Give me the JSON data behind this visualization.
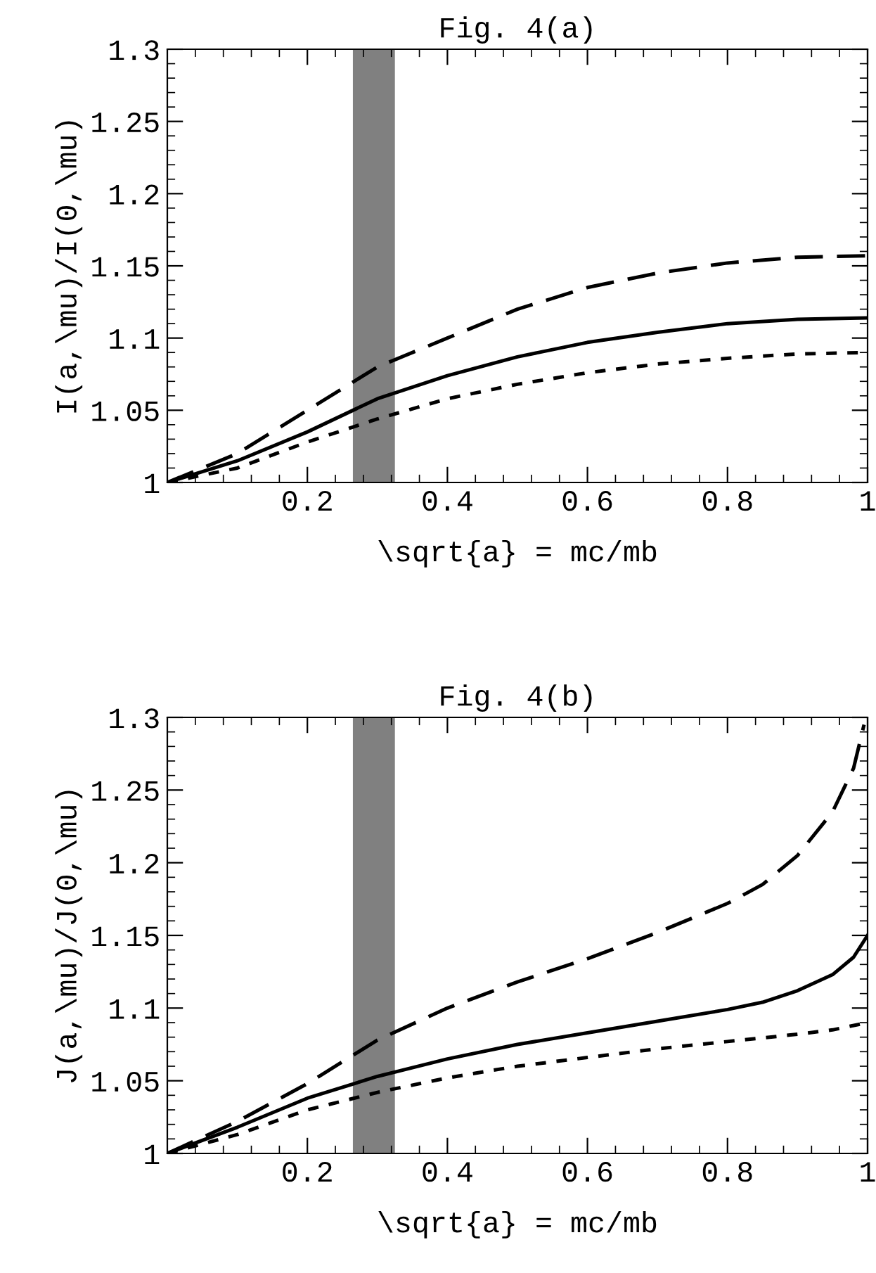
{
  "chart_data": [
    {
      "type": "line",
      "title": "Fig. 4(a)",
      "xlabel": "\\sqrt{a} = mc/mb",
      "ylabel": "I(a,\\mu)/I(0,\\mu)",
      "xlim": [
        0,
        1
      ],
      "ylim": [
        1,
        1.3
      ],
      "xticks": [
        0.2,
        0.4,
        0.6,
        0.8,
        1
      ],
      "yticks": [
        1,
        1.05,
        1.1,
        1.15,
        1.2,
        1.25,
        1.3
      ],
      "grid": false,
      "legend": false,
      "bands": [
        {
          "axis": "x",
          "from": 0.265,
          "to": 0.325,
          "color": "#808080"
        }
      ],
      "series": [
        {
          "color": "#000000",
          "line_style": "dashed",
          "x": [
            0,
            0.1,
            0.2,
            0.3,
            0.4,
            0.5,
            0.6,
            0.7,
            0.8,
            0.9,
            1
          ],
          "values": [
            1,
            1.02,
            1.05,
            1.08,
            1.1,
            1.12,
            1.135,
            1.145,
            1.152,
            1.156,
            1.157
          ]
        },
        {
          "color": "#000000",
          "line_style": "solid",
          "x": [
            0,
            0.1,
            0.2,
            0.3,
            0.4,
            0.5,
            0.6,
            0.7,
            0.8,
            0.9,
            1
          ],
          "values": [
            1,
            1.015,
            1.035,
            1.058,
            1.074,
            1.087,
            1.097,
            1.104,
            1.11,
            1.113,
            1.114
          ]
        },
        {
          "color": "#000000",
          "line_style": "dotted",
          "x": [
            0,
            0.1,
            0.2,
            0.3,
            0.4,
            0.5,
            0.6,
            0.7,
            0.8,
            0.9,
            1
          ],
          "values": [
            1,
            1.01,
            1.028,
            1.044,
            1.058,
            1.068,
            1.076,
            1.082,
            1.086,
            1.089,
            1.09
          ]
        }
      ]
    },
    {
      "type": "line",
      "title": "Fig. 4(b)",
      "xlabel": "\\sqrt{a} = mc/mb",
      "ylabel": "J(a,\\mu)/J(0,\\mu)",
      "xlim": [
        0,
        1
      ],
      "ylim": [
        1,
        1.3
      ],
      "xticks": [
        0.2,
        0.4,
        0.6,
        0.8,
        1
      ],
      "yticks": [
        1,
        1.05,
        1.1,
        1.15,
        1.2,
        1.25,
        1.3
      ],
      "grid": false,
      "legend": false,
      "bands": [
        {
          "axis": "x",
          "from": 0.265,
          "to": 0.325,
          "color": "#808080"
        }
      ],
      "series": [
        {
          "color": "#000000",
          "line_style": "dashed",
          "x": [
            0,
            0.1,
            0.2,
            0.3,
            0.4,
            0.5,
            0.6,
            0.7,
            0.8,
            0.85,
            0.9,
            0.95,
            0.98,
            0.995
          ],
          "values": [
            1,
            1.022,
            1.048,
            1.078,
            1.1,
            1.118,
            1.134,
            1.152,
            1.172,
            1.185,
            1.205,
            1.235,
            1.265,
            1.295
          ]
        },
        {
          "color": "#000000",
          "line_style": "solid",
          "x": [
            0,
            0.1,
            0.2,
            0.3,
            0.4,
            0.5,
            0.6,
            0.7,
            0.8,
            0.85,
            0.9,
            0.95,
            0.98,
            1
          ],
          "values": [
            1,
            1.018,
            1.038,
            1.053,
            1.065,
            1.075,
            1.083,
            1.091,
            1.099,
            1.104,
            1.112,
            1.123,
            1.135,
            1.15
          ]
        },
        {
          "color": "#000000",
          "line_style": "dotted",
          "x": [
            0,
            0.1,
            0.2,
            0.3,
            0.4,
            0.5,
            0.6,
            0.7,
            0.8,
            0.9,
            0.95,
            1
          ],
          "values": [
            1,
            1.013,
            1.03,
            1.042,
            1.052,
            1.06,
            1.066,
            1.072,
            1.077,
            1.082,
            1.085,
            1.09
          ]
        }
      ]
    }
  ]
}
